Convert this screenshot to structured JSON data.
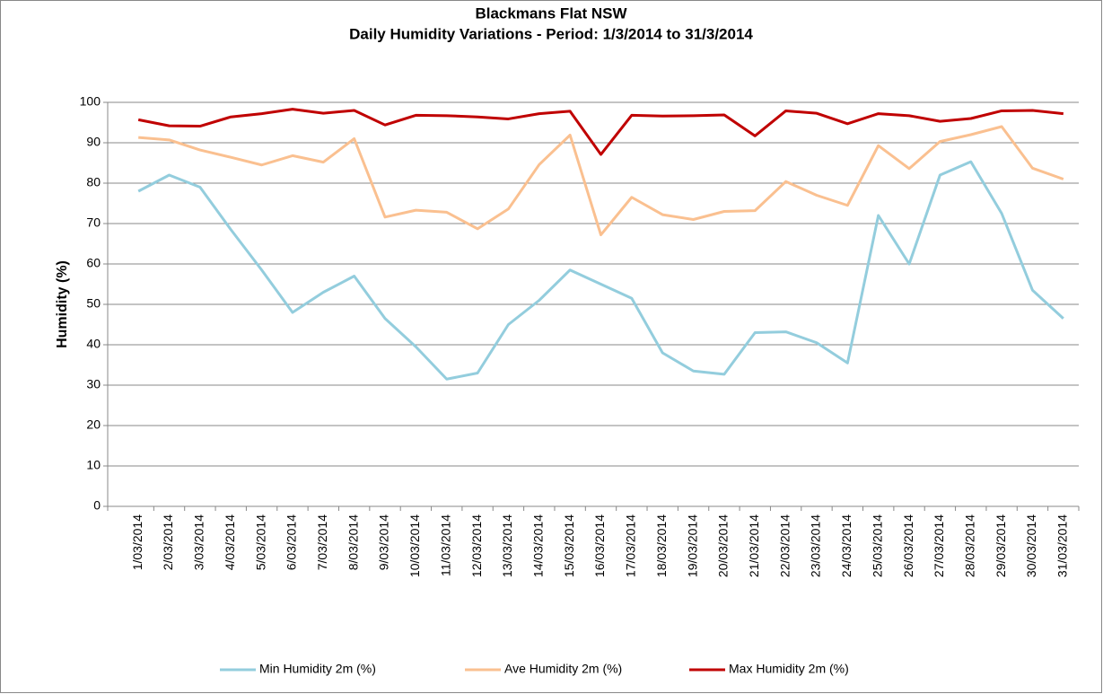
{
  "chart_data": {
    "type": "line",
    "title": "Blackmans Flat NSW",
    "subtitle": "Daily Humidity Variations - Period: 1/3/2014 to 31/3/2014",
    "y_label": "Humidity (%)",
    "categories": [
      "1/03/2014",
      "2/03/2014",
      "3/03/2014",
      "4/03/2014",
      "5/03/2014",
      "6/03/2014",
      "7/03/2014",
      "8/03/2014",
      "9/03/2014",
      "10/03/2014",
      "11/03/2014",
      "12/03/2014",
      "13/03/2014",
      "14/03/2014",
      "15/03/2014",
      "16/03/2014",
      "17/03/2014",
      "18/03/2014",
      "19/03/2014",
      "20/03/2014",
      "21/03/2014",
      "22/03/2014",
      "23/03/2014",
      "24/03/2014",
      "25/03/2014",
      "26/03/2014",
      "27/03/2014",
      "28/03/2014",
      "29/03/2014",
      "30/03/2014",
      "31/03/2014"
    ],
    "series": [
      {
        "name": "Min Humidity 2m (%)",
        "color": "#93cddd",
        "values": [
          78,
          82,
          79,
          68.5,
          58.5,
          48,
          53,
          57,
          46.5,
          39.5,
          31.5,
          33,
          45,
          51,
          58.5,
          55,
          51.5,
          38,
          33.5,
          32.7,
          43,
          43.2,
          40.5,
          35.5,
          72,
          60,
          82,
          85.3,
          72.5,
          53.5,
          46.5
        ]
      },
      {
        "name": "Ave Humidity 2m (%)",
        "color": "#fac090",
        "values": [
          91.3,
          90.7,
          88.2,
          86.4,
          84.5,
          86.8,
          85.2,
          91,
          71.6,
          73.3,
          72.8,
          68.7,
          73.6,
          84.6,
          91.9,
          67.2,
          76.5,
          72.2,
          71,
          73,
          73.2,
          80.4,
          77,
          74.5,
          89.3,
          83.6,
          90.3,
          92,
          94,
          83.7,
          81
        ]
      },
      {
        "name": "Max Humidity 2m (%)",
        "color": "#c00000",
        "values": [
          95.7,
          94.2,
          94.1,
          96.4,
          97.2,
          98.3,
          97.3,
          98,
          94.4,
          96.8,
          96.7,
          96.4,
          95.9,
          97.2,
          97.8,
          87.1,
          96.8,
          96.6,
          96.7,
          96.9,
          91.7,
          97.9,
          97.3,
          94.7,
          97.2,
          96.7,
          95.3,
          96,
          97.9,
          98,
          97.2
        ]
      }
    ],
    "ylim": [
      0,
      100
    ],
    "yticks": [
      0,
      10,
      20,
      30,
      40,
      50,
      60,
      70,
      80,
      90,
      100
    ],
    "grid": true,
    "legend": "bottom"
  }
}
